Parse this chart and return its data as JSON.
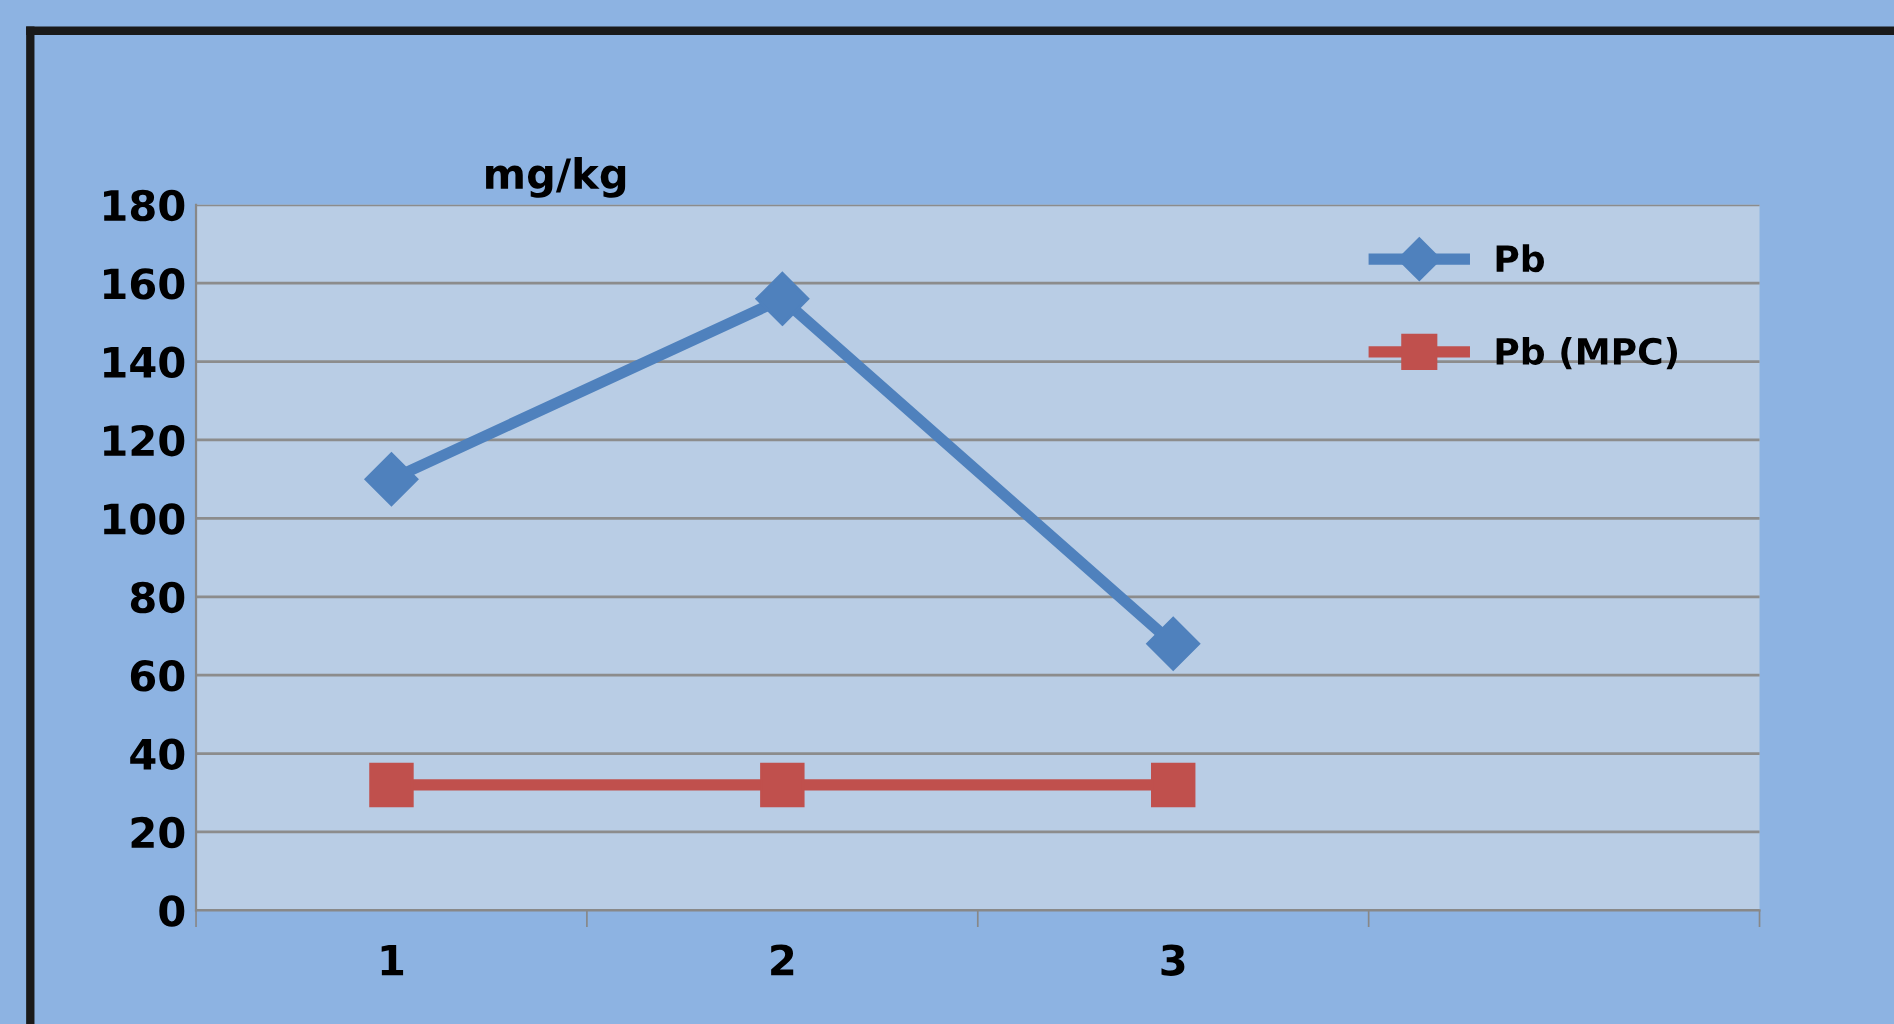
{
  "chart_data": {
    "type": "line",
    "ylabel": "mg/kg",
    "categories": [
      "1",
      "2",
      "3"
    ],
    "series": [
      {
        "name": "Pb",
        "color": "#4f81bd",
        "marker": "diamond",
        "values": [
          110,
          156,
          68
        ]
      },
      {
        "name": "Pb (MPC)",
        "color": "#c0504d",
        "marker": "square",
        "values": [
          32,
          32,
          32
        ]
      }
    ],
    "ylim": [
      0,
      180
    ],
    "yticks": [
      0,
      20,
      40,
      60,
      80,
      100,
      120,
      140,
      160,
      180
    ],
    "grid": "y",
    "legend": "top right",
    "line_style": "solid"
  }
}
